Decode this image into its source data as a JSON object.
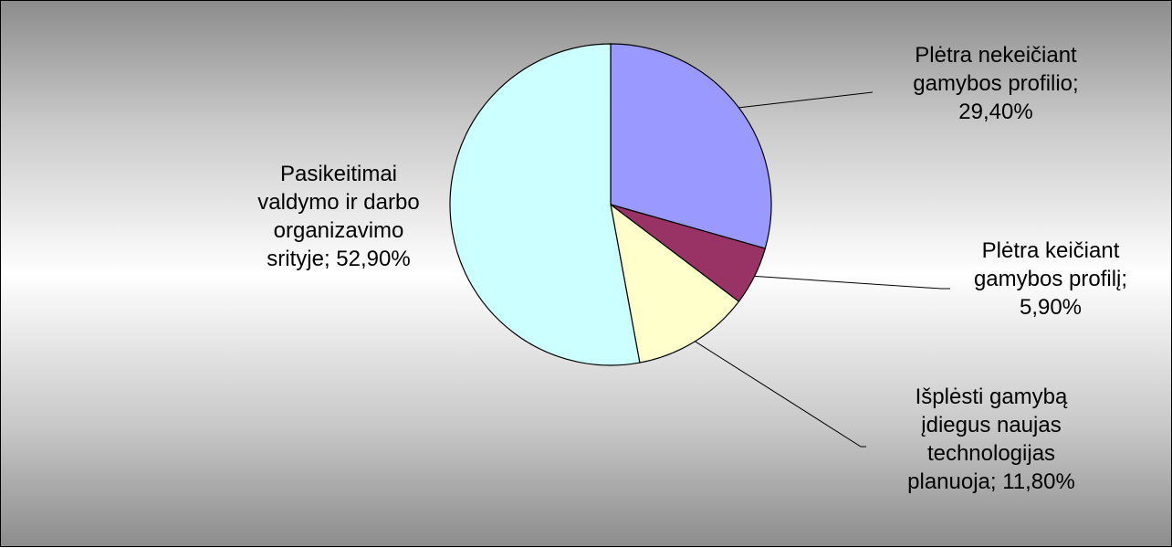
{
  "chart_data": {
    "type": "pie",
    "start_angle_deg": 0,
    "direction": "clockwise",
    "legend": "none",
    "slices": [
      {
        "label_lines": [
          "Plėtra nekeičiant",
          "gamybos profilio;",
          "29,40%"
        ],
        "value": 29.4,
        "color": "#9999ff"
      },
      {
        "label_lines": [
          "Plėtra keičiant",
          "gamybos profilį;",
          "5,90%"
        ],
        "value": 5.9,
        "color": "#993366"
      },
      {
        "label_lines": [
          "Išplėsti gamybą",
          "įdiegus naujas",
          "technologijas",
          "planuoja; 11,80%"
        ],
        "value": 11.8,
        "color": "#ffffcc"
      },
      {
        "label_lines": [
          "Pasikeitimai",
          "valdymo ir darbo",
          "organizavimo",
          "srityje; 52,90%"
        ],
        "value": 52.9,
        "color": "#ccffff"
      }
    ]
  }
}
